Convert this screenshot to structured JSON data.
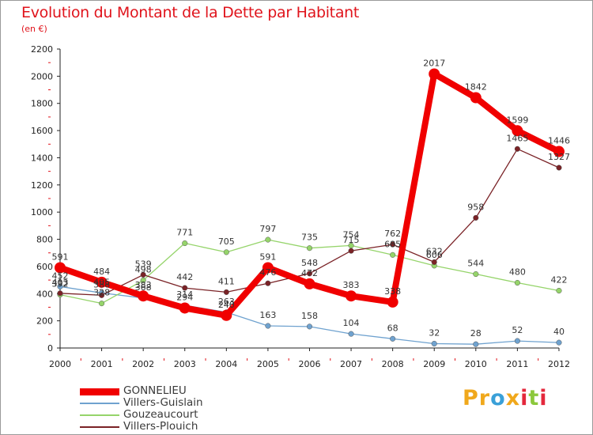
{
  "title": "Evolution du Montant de la Dette par Habitant",
  "subtitle": "(en €)",
  "logo": {
    "text": "Proxiti",
    "letter_colors": [
      "#f0a81c",
      "#f0a81c",
      "#3aa0d8",
      "#f0a81c",
      "#e4283c",
      "#8cc83c",
      "#e4283c"
    ]
  },
  "chart_data": {
    "type": "line",
    "title": "Evolution du Montant de la Dette par Habitant",
    "subtitle": "(en €)",
    "x": [
      "2000",
      "2001",
      "2002",
      "2003",
      "2004",
      "2005",
      "2006",
      "2007",
      "2008",
      "2009",
      "2010",
      "2011",
      "2012"
    ],
    "ylim": [
      0,
      2200
    ],
    "yticks": [
      0,
      200,
      400,
      600,
      800,
      1000,
      1200,
      1400,
      1600,
      1800,
      2000,
      2200
    ],
    "grid": false,
    "legend_position": "bottom-left",
    "series": [
      {
        "name": "GONNELIEU",
        "color": "#f00000",
        "values": [
          591,
          484,
          383,
          294,
          240,
          591,
          472,
          383,
          338,
          2017,
          1842,
          1599,
          1446
        ]
      },
      {
        "name": "Villers-Guislain",
        "color": "#6fa2cf",
        "values": [
          452,
          405,
          368,
          314,
          263,
          163,
          158,
          104,
          68,
          32,
          28,
          52,
          40
        ]
      },
      {
        "name": "Gouzeaucourt",
        "color": "#95d46a",
        "values": [
          392,
          328,
          498,
          771,
          705,
          797,
          735,
          754,
          685,
          606,
          544,
          480,
          422
        ]
      },
      {
        "name": "Villers-Plouich",
        "color": "#7a2226",
        "values": [
          403,
          388,
          539,
          442,
          411,
          476,
          548,
          715,
          762,
          632,
          958,
          1465,
          1327
        ]
      }
    ],
    "data_labels": [
      [
        "591",
        "484",
        "383",
        "294",
        "240",
        "591",
        "472",
        "383",
        "338",
        "2017",
        "1842",
        "1599",
        "1446"
      ],
      [
        "452",
        "405",
        "368",
        "314",
        "263",
        "163",
        "158",
        "104",
        "68",
        "32",
        "28",
        "52",
        "40"
      ],
      [
        "392",
        "328",
        "498",
        "771",
        "705",
        "797",
        "735",
        "754",
        "685",
        "606",
        "544",
        "480",
        "422"
      ],
      [
        "403",
        "388",
        "539",
        "442",
        "411",
        "476",
        "548",
        "715",
        "762",
        "632",
        "958",
        "1465",
        "1327"
      ]
    ]
  }
}
